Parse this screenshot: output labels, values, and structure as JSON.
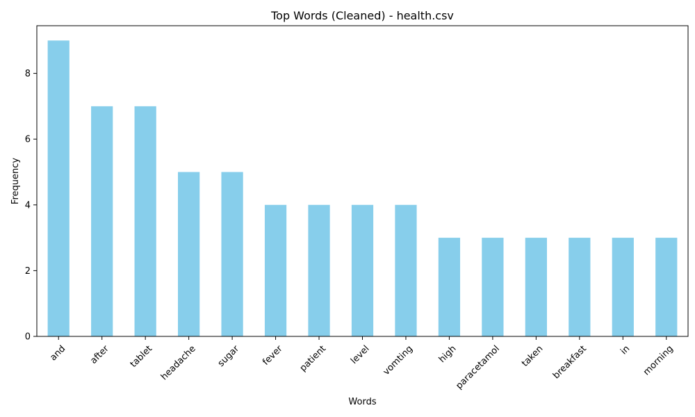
{
  "chart_data": {
    "type": "bar",
    "title": "Top Words (Cleaned) - health.csv",
    "xlabel": "Words",
    "ylabel": "Frequency",
    "categories": [
      "and",
      "after",
      "tablet",
      "headache",
      "sugar",
      "fever",
      "patient",
      "level",
      "vomting",
      "high",
      "paracetamol",
      "taken",
      "breakfast",
      "in",
      "morning"
    ],
    "values": [
      9,
      7,
      7,
      5,
      5,
      4,
      4,
      4,
      4,
      3,
      3,
      3,
      3,
      3,
      3
    ],
    "ylim": [
      0,
      9.45
    ],
    "yticks": [
      0,
      2,
      4,
      6,
      8
    ],
    "x_tick_rotation_deg": 45,
    "bar_color": "#87ceeb",
    "grid": false,
    "legend": "none"
  }
}
